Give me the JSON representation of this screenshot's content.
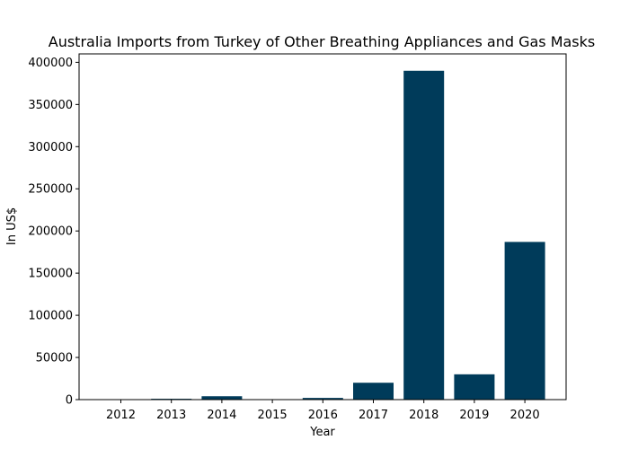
{
  "chart_data": {
    "type": "bar",
    "title": "Australia Imports from Turkey of Other Breathing Appliances and Gas Masks",
    "xlabel": "Year",
    "ylabel": "In US$",
    "categories": [
      "2012",
      "2013",
      "2014",
      "2015",
      "2016",
      "2017",
      "2018",
      "2019",
      "2020"
    ],
    "values": [
      300,
      1000,
      4000,
      200,
      2000,
      20000,
      390000,
      30000,
      187000
    ],
    "yticks": [
      0,
      50000,
      100000,
      150000,
      200000,
      250000,
      300000,
      350000,
      400000
    ],
    "ytick_labels": [
      "0",
      "50000",
      "100000",
      "150000",
      "200000",
      "250000",
      "300000",
      "350000",
      "400000"
    ],
    "ylim": [
      0,
      410000
    ],
    "bar_color": "#003b5a",
    "grid": false,
    "legend": "none"
  }
}
